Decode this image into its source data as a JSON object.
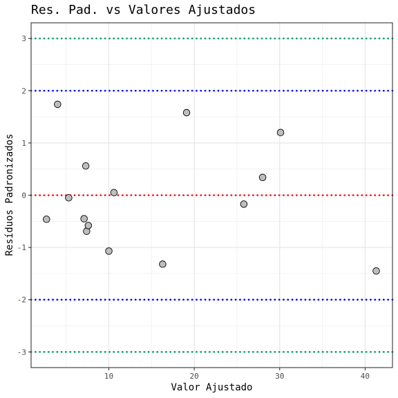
{
  "chart_data": {
    "type": "scatter",
    "title": "Res. Pad. vs Valores Ajustados",
    "xlabel": "Valor Ajustado",
    "ylabel": "Resíduos Padronizados",
    "xlim": [
      0.9,
      43.2
    ],
    "ylim": [
      -3.3,
      3.3
    ],
    "x_ticks": [
      10,
      20,
      30,
      40
    ],
    "y_ticks": [
      -3,
      -2,
      -1,
      0,
      1,
      2,
      3
    ],
    "x_tick_labels": [
      "10",
      "20",
      "30",
      "40"
    ],
    "y_tick_labels": [
      "-3",
      "-2",
      "-1",
      "0",
      "1",
      "2",
      "3"
    ],
    "grid": true,
    "points": [
      {
        "x": 2.7,
        "y": -0.46
      },
      {
        "x": 4.0,
        "y": 1.74
      },
      {
        "x": 5.3,
        "y": -0.05
      },
      {
        "x": 7.1,
        "y": -0.45
      },
      {
        "x": 7.3,
        "y": 0.56
      },
      {
        "x": 7.4,
        "y": -0.69
      },
      {
        "x": 7.6,
        "y": -0.58
      },
      {
        "x": 10.0,
        "y": -1.07
      },
      {
        "x": 10.6,
        "y": 0.05
      },
      {
        "x": 16.3,
        "y": -1.32
      },
      {
        "x": 19.1,
        "y": 1.58
      },
      {
        "x": 25.8,
        "y": -0.17
      },
      {
        "x": 28.0,
        "y": 0.34
      },
      {
        "x": 30.1,
        "y": 1.2
      },
      {
        "x": 41.3,
        "y": -1.45
      }
    ],
    "reference_lines": [
      {
        "y": 3,
        "color": "#009E73",
        "style": "dotted"
      },
      {
        "y": 2,
        "color": "#0000FF",
        "style": "dotted"
      },
      {
        "y": 0,
        "color": "#FF0000",
        "style": "dotted"
      },
      {
        "y": -2,
        "color": "#0000FF",
        "style": "dotted"
      },
      {
        "y": -3,
        "color": "#009E73",
        "style": "dotted"
      }
    ],
    "point_fill": "#BEBEBE",
    "point_stroke": "#000000"
  }
}
